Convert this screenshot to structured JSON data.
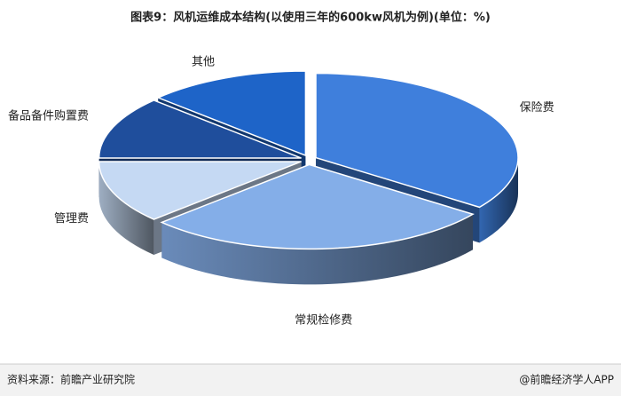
{
  "chart_data": {
    "type": "pie3d",
    "title": "图表9：风机运维成本结构(以使用三年的600kw风机为例)(单位：%)",
    "categories": [
      "保险费",
      "常规检修费",
      "管理费",
      "备品备件购置费",
      "其他"
    ],
    "values": [
      35,
      28,
      12,
      12,
      13
    ],
    "colors": [
      "#3f7fdc",
      "#84aee8",
      "#c5d9f3",
      "#1f4e9c",
      "#1e64c8"
    ]
  },
  "footer": {
    "source": "资料来源：前瞻产业研究院",
    "brand": "@前瞻经济学人APP"
  }
}
